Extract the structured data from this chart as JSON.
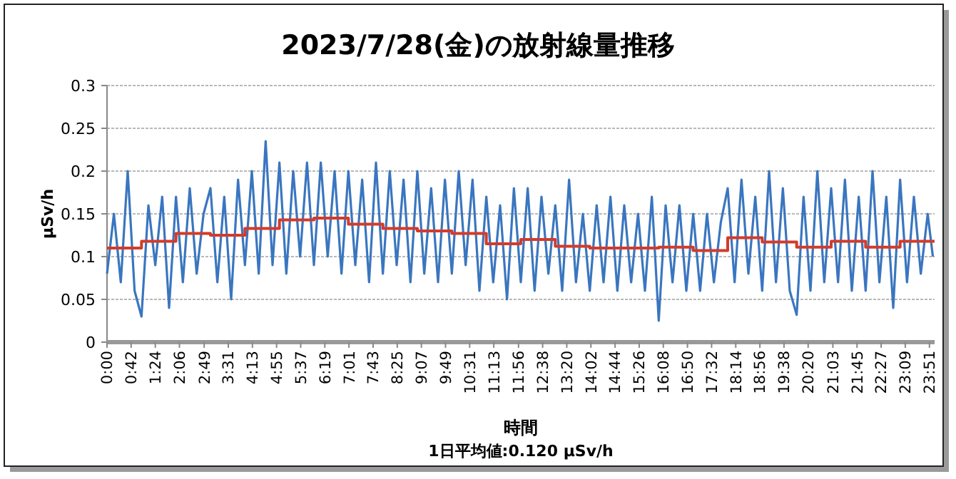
{
  "chart_data": {
    "type": "line",
    "title": "2023/7/28(金)の放射線量推移",
    "xlabel": "時間",
    "ylabel": "μSv/h",
    "annotations": [
      "1日平均値:0.120 μSv/h"
    ],
    "grid": "y",
    "marker": "none",
    "xlim": [
      0,
      24
    ],
    "ylim": [
      0,
      0.3
    ],
    "yticks": [
      0,
      0.05,
      0.1,
      0.15,
      0.2,
      0.25,
      0.3
    ],
    "xticks": [
      {
        "value": 0,
        "label": "0:00"
      },
      {
        "value": 0.7,
        "label": "0:42"
      },
      {
        "value": 1.4,
        "label": "1:24"
      },
      {
        "value": 2.1,
        "label": "2:06"
      },
      {
        "value": 2.817,
        "label": "2:49"
      },
      {
        "value": 3.517,
        "label": "3:31"
      },
      {
        "value": 4.217,
        "label": "4:13"
      },
      {
        "value": 4.917,
        "label": "4:55"
      },
      {
        "value": 5.617,
        "label": "5:37"
      },
      {
        "value": 6.317,
        "label": "6:19"
      },
      {
        "value": 7.017,
        "label": "7:01"
      },
      {
        "value": 7.717,
        "label": "7:43"
      },
      {
        "value": 8.417,
        "label": "8:25"
      },
      {
        "value": 9.117,
        "label": "9:07"
      },
      {
        "value": 9.817,
        "label": "9:49"
      },
      {
        "value": 10.517,
        "label": "10:31"
      },
      {
        "value": 11.217,
        "label": "11:13"
      },
      {
        "value": 11.933,
        "label": "11:56"
      },
      {
        "value": 12.633,
        "label": "12:38"
      },
      {
        "value": 13.333,
        "label": "13:20"
      },
      {
        "value": 14.033,
        "label": "14:02"
      },
      {
        "value": 14.733,
        "label": "14:44"
      },
      {
        "value": 15.433,
        "label": "15:26"
      },
      {
        "value": 16.133,
        "label": "16:08"
      },
      {
        "value": 16.833,
        "label": "16:50"
      },
      {
        "value": 17.533,
        "label": "17:32"
      },
      {
        "value": 18.233,
        "label": "18:14"
      },
      {
        "value": 18.933,
        "label": "18:56"
      },
      {
        "value": 19.633,
        "label": "19:38"
      },
      {
        "value": 20.333,
        "label": "20:20"
      },
      {
        "value": 21.05,
        "label": "21:03"
      },
      {
        "value": 21.75,
        "label": "21:45"
      },
      {
        "value": 22.45,
        "label": "22:27"
      },
      {
        "value": 23.15,
        "label": "23:09"
      },
      {
        "value": 23.85,
        "label": "23:51"
      }
    ],
    "series": [
      {
        "color": "#3a76bf",
        "x": [
          0,
          0.2,
          0.4,
          0.6,
          0.8,
          1,
          1.2,
          1.4,
          1.6,
          1.8,
          2,
          2.2,
          2.4,
          2.6,
          2.8,
          3,
          3.2,
          3.4,
          3.6,
          3.8,
          4,
          4.2,
          4.4,
          4.6,
          4.8,
          5,
          5.2,
          5.4,
          5.6,
          5.8,
          6,
          6.2,
          6.4,
          6.6,
          6.8,
          7,
          7.2,
          7.4,
          7.6,
          7.8,
          8,
          8.2,
          8.4,
          8.6,
          8.8,
          9,
          9.2,
          9.4,
          9.6,
          9.8,
          10,
          10.2,
          10.4,
          10.6,
          10.8,
          11,
          11.2,
          11.4,
          11.6,
          11.8,
          12,
          12.2,
          12.4,
          12.6,
          12.8,
          13,
          13.2,
          13.4,
          13.6,
          13.8,
          14,
          14.2,
          14.4,
          14.6,
          14.8,
          15,
          15.2,
          15.4,
          15.6,
          15.8,
          16,
          16.2,
          16.4,
          16.6,
          16.8,
          17,
          17.2,
          17.4,
          17.6,
          17.8,
          18,
          18.2,
          18.4,
          18.6,
          18.8,
          19,
          19.2,
          19.4,
          19.6,
          19.8,
          20,
          20.2,
          20.4,
          20.6,
          20.8,
          21,
          21.2,
          21.4,
          21.6,
          21.8,
          22,
          22.2,
          22.4,
          22.6,
          22.8,
          23,
          23.2,
          23.4,
          23.6,
          23.8,
          23.95
        ],
        "values": [
          0.08,
          0.15,
          0.07,
          0.2,
          0.06,
          0.03,
          0.16,
          0.09,
          0.17,
          0.04,
          0.17,
          0.07,
          0.18,
          0.08,
          0.15,
          0.18,
          0.07,
          0.17,
          0.05,
          0.19,
          0.09,
          0.2,
          0.08,
          0.235,
          0.09,
          0.21,
          0.08,
          0.2,
          0.1,
          0.21,
          0.09,
          0.21,
          0.1,
          0.2,
          0.08,
          0.2,
          0.09,
          0.19,
          0.07,
          0.21,
          0.08,
          0.2,
          0.09,
          0.19,
          0.07,
          0.2,
          0.08,
          0.18,
          0.07,
          0.19,
          0.08,
          0.2,
          0.09,
          0.19,
          0.06,
          0.17,
          0.07,
          0.16,
          0.05,
          0.18,
          0.07,
          0.18,
          0.06,
          0.17,
          0.08,
          0.16,
          0.06,
          0.19,
          0.07,
          0.15,
          0.06,
          0.16,
          0.07,
          0.17,
          0.06,
          0.16,
          0.07,
          0.15,
          0.06,
          0.17,
          0.025,
          0.16,
          0.07,
          0.16,
          0.06,
          0.15,
          0.06,
          0.15,
          0.07,
          0.14,
          0.18,
          0.07,
          0.19,
          0.08,
          0.17,
          0.06,
          0.2,
          0.07,
          0.18,
          0.06,
          0.032,
          0.17,
          0.06,
          0.2,
          0.07,
          0.18,
          0.07,
          0.19,
          0.06,
          0.17,
          0.06,
          0.2,
          0.07,
          0.17,
          0.04,
          0.19,
          0.07,
          0.17,
          0.08,
          0.15,
          0.1
        ]
      },
      {
        "type": "step",
        "color": "#d23b2b",
        "x": [
          0,
          1,
          2,
          3,
          4,
          5,
          6,
          7,
          8,
          9,
          10,
          11,
          12,
          13,
          14,
          15,
          16,
          17,
          18,
          19,
          20,
          21,
          22,
          23,
          24
        ],
        "values": [
          0.11,
          0.118,
          0.127,
          0.125,
          0.133,
          0.143,
          0.145,
          0.138,
          0.133,
          0.13,
          0.127,
          0.115,
          0.12,
          0.112,
          0.11,
          0.11,
          0.111,
          0.107,
          0.122,
          0.117,
          0.111,
          0.118,
          0.111,
          0.118,
          0.118
        ]
      }
    ]
  }
}
